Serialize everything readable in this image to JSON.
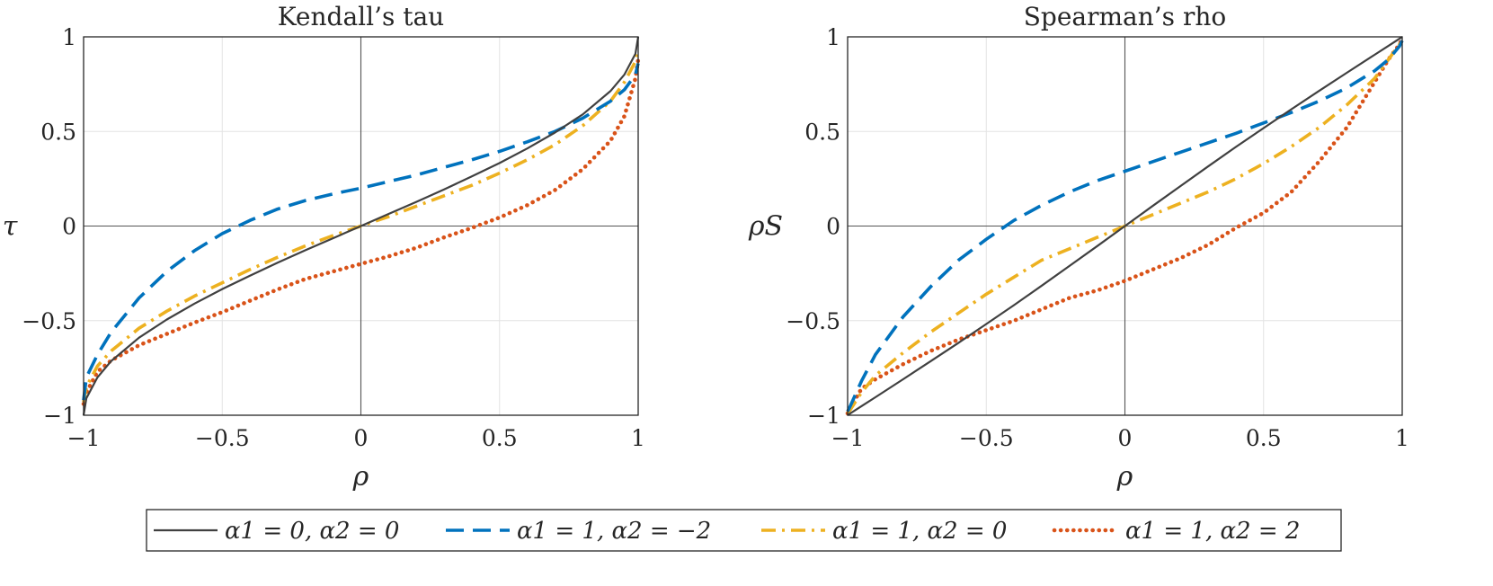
{
  "chart_data": [
    {
      "type": "line",
      "title": "Kendall’s tau",
      "xlabel": "ρ",
      "ylabel": "τ",
      "xlim": [
        -1,
        1
      ],
      "ylim": [
        -1,
        1
      ],
      "grid": true,
      "xticks": [
        -1,
        -0.5,
        0,
        0.5,
        1
      ],
      "yticks": [
        -1,
        -0.5,
        0,
        0.5,
        1
      ],
      "xtick_labels": [
        "−1",
        "−0.5",
        "0",
        "0.5",
        "1"
      ],
      "ytick_labels": [
        "−1",
        "−0.5",
        "0",
        "0.5",
        "1"
      ],
      "x": [
        -1,
        -0.99,
        -0.95,
        -0.9,
        -0.8,
        -0.7,
        -0.6,
        -0.5,
        -0.4,
        -0.3,
        -0.2,
        -0.1,
        0,
        0.1,
        0.2,
        0.3,
        0.4,
        0.5,
        0.6,
        0.7,
        0.8,
        0.9,
        0.95,
        0.99,
        1
      ],
      "series": [
        {
          "name": "α1 = 0,  α2 = 0",
          "color": "#404040",
          "dash": "solid",
          "values": [
            -1,
            -0.91,
            -0.8,
            -0.713,
            -0.59,
            -0.494,
            -0.41,
            -0.333,
            -0.262,
            -0.194,
            -0.128,
            -0.064,
            0,
            0.064,
            0.128,
            0.194,
            0.262,
            0.333,
            0.41,
            0.494,
            0.59,
            0.713,
            0.8,
            0.91,
            1
          ]
        },
        {
          "name": "α1 = 1,  α2 = −2",
          "color": "#0072BD",
          "dash": "dashed",
          "values": [
            -0.92,
            -0.8,
            -0.68,
            -0.56,
            -0.38,
            -0.24,
            -0.13,
            -0.04,
            0.03,
            0.09,
            0.135,
            0.17,
            0.2,
            0.235,
            0.27,
            0.31,
            0.35,
            0.395,
            0.445,
            0.5,
            0.57,
            0.66,
            0.72,
            0.8,
            0.86
          ]
        },
        {
          "name": "α1 = 1,  α2 = 0",
          "color": "#EDB120",
          "dash": "dashdot",
          "values": [
            -0.93,
            -0.85,
            -0.74,
            -0.66,
            -0.54,
            -0.45,
            -0.37,
            -0.3,
            -0.23,
            -0.165,
            -0.105,
            -0.05,
            0,
            0.05,
            0.105,
            0.16,
            0.215,
            0.28,
            0.35,
            0.43,
            0.53,
            0.66,
            0.76,
            0.87,
            0.93
          ]
        },
        {
          "name": "α1 = 1,  α2 = 2",
          "color": "#D95319",
          "dash": "dotted",
          "values": [
            -0.94,
            -0.88,
            -0.77,
            -0.71,
            -0.63,
            -0.57,
            -0.51,
            -0.455,
            -0.395,
            -0.335,
            -0.28,
            -0.24,
            -0.2,
            -0.16,
            -0.115,
            -0.06,
            -0.01,
            0.045,
            0.11,
            0.19,
            0.3,
            0.45,
            0.58,
            0.78,
            0.88
          ]
        }
      ]
    },
    {
      "type": "line",
      "title": "Spearman’s rho",
      "xlabel": "ρ",
      "ylabel": "ρS",
      "xlim": [
        -1,
        1
      ],
      "ylim": [
        -1,
        1
      ],
      "grid": true,
      "xticks": [
        -1,
        -0.5,
        0,
        0.5,
        1
      ],
      "yticks": [
        -1,
        -0.5,
        0,
        0.5,
        1
      ],
      "xtick_labels": [
        "−1",
        "−0.5",
        "0",
        "0.5",
        "1"
      ],
      "ytick_labels": [
        "−1",
        "−0.5",
        "0",
        "0.5",
        "1"
      ],
      "x": [
        -1,
        -0.99,
        -0.95,
        -0.9,
        -0.8,
        -0.7,
        -0.6,
        -0.5,
        -0.4,
        -0.3,
        -0.2,
        -0.1,
        0,
        0.1,
        0.2,
        0.3,
        0.4,
        0.5,
        0.6,
        0.7,
        0.8,
        0.9,
        0.95,
        0.99,
        1
      ],
      "series": [
        {
          "name": "α1 = 0,  α2 = 0",
          "color": "#404040",
          "dash": "solid",
          "values": [
            -1,
            -0.99,
            -0.952,
            -0.905,
            -0.81,
            -0.714,
            -0.617,
            -0.518,
            -0.418,
            -0.315,
            -0.211,
            -0.106,
            0,
            0.106,
            0.211,
            0.315,
            0.418,
            0.518,
            0.617,
            0.714,
            0.81,
            0.905,
            0.952,
            0.99,
            1
          ]
        },
        {
          "name": "α1 = 1,  α2 = −2",
          "color": "#0072BD",
          "dash": "dashed",
          "values": [
            -0.98,
            -0.95,
            -0.82,
            -0.68,
            -0.48,
            -0.32,
            -0.18,
            -0.07,
            0.03,
            0.11,
            0.18,
            0.24,
            0.29,
            0.34,
            0.39,
            0.44,
            0.49,
            0.545,
            0.6,
            0.66,
            0.73,
            0.82,
            0.88,
            0.95,
            0.98
          ]
        },
        {
          "name": "α1 = 1,  α2 = 0",
          "color": "#EDB120",
          "dash": "dashdot",
          "values": [
            -0.99,
            -0.97,
            -0.88,
            -0.79,
            -0.67,
            -0.56,
            -0.46,
            -0.36,
            -0.27,
            -0.18,
            -0.12,
            -0.06,
            0,
            0.06,
            0.12,
            0.18,
            0.25,
            0.33,
            0.42,
            0.52,
            0.64,
            0.78,
            0.88,
            0.96,
            0.99
          ]
        },
        {
          "name": "α1 = 1,  α2 = 2",
          "color": "#D95319",
          "dash": "dotted",
          "values": [
            -0.99,
            -0.96,
            -0.86,
            -0.81,
            -0.73,
            -0.66,
            -0.6,
            -0.55,
            -0.5,
            -0.44,
            -0.38,
            -0.34,
            -0.29,
            -0.23,
            -0.17,
            -0.1,
            -0.01,
            0.07,
            0.18,
            0.34,
            0.52,
            0.76,
            0.88,
            0.96,
            0.99
          ]
        }
      ]
    }
  ],
  "legend": {
    "placement": "bottom",
    "entries": [
      {
        "label": "α1 = 0,  α2 = 0",
        "color": "#404040",
        "dash": "solid"
      },
      {
        "label": "α1 = 1,  α2 = −2",
        "color": "#0072BD",
        "dash": "dashed"
      },
      {
        "label": "α1 = 1,  α2 = 0",
        "color": "#EDB120",
        "dash": "dashdot"
      },
      {
        "label": "α1 = 1,  α2 = 2",
        "color": "#D95319",
        "dash": "dotted"
      }
    ]
  }
}
